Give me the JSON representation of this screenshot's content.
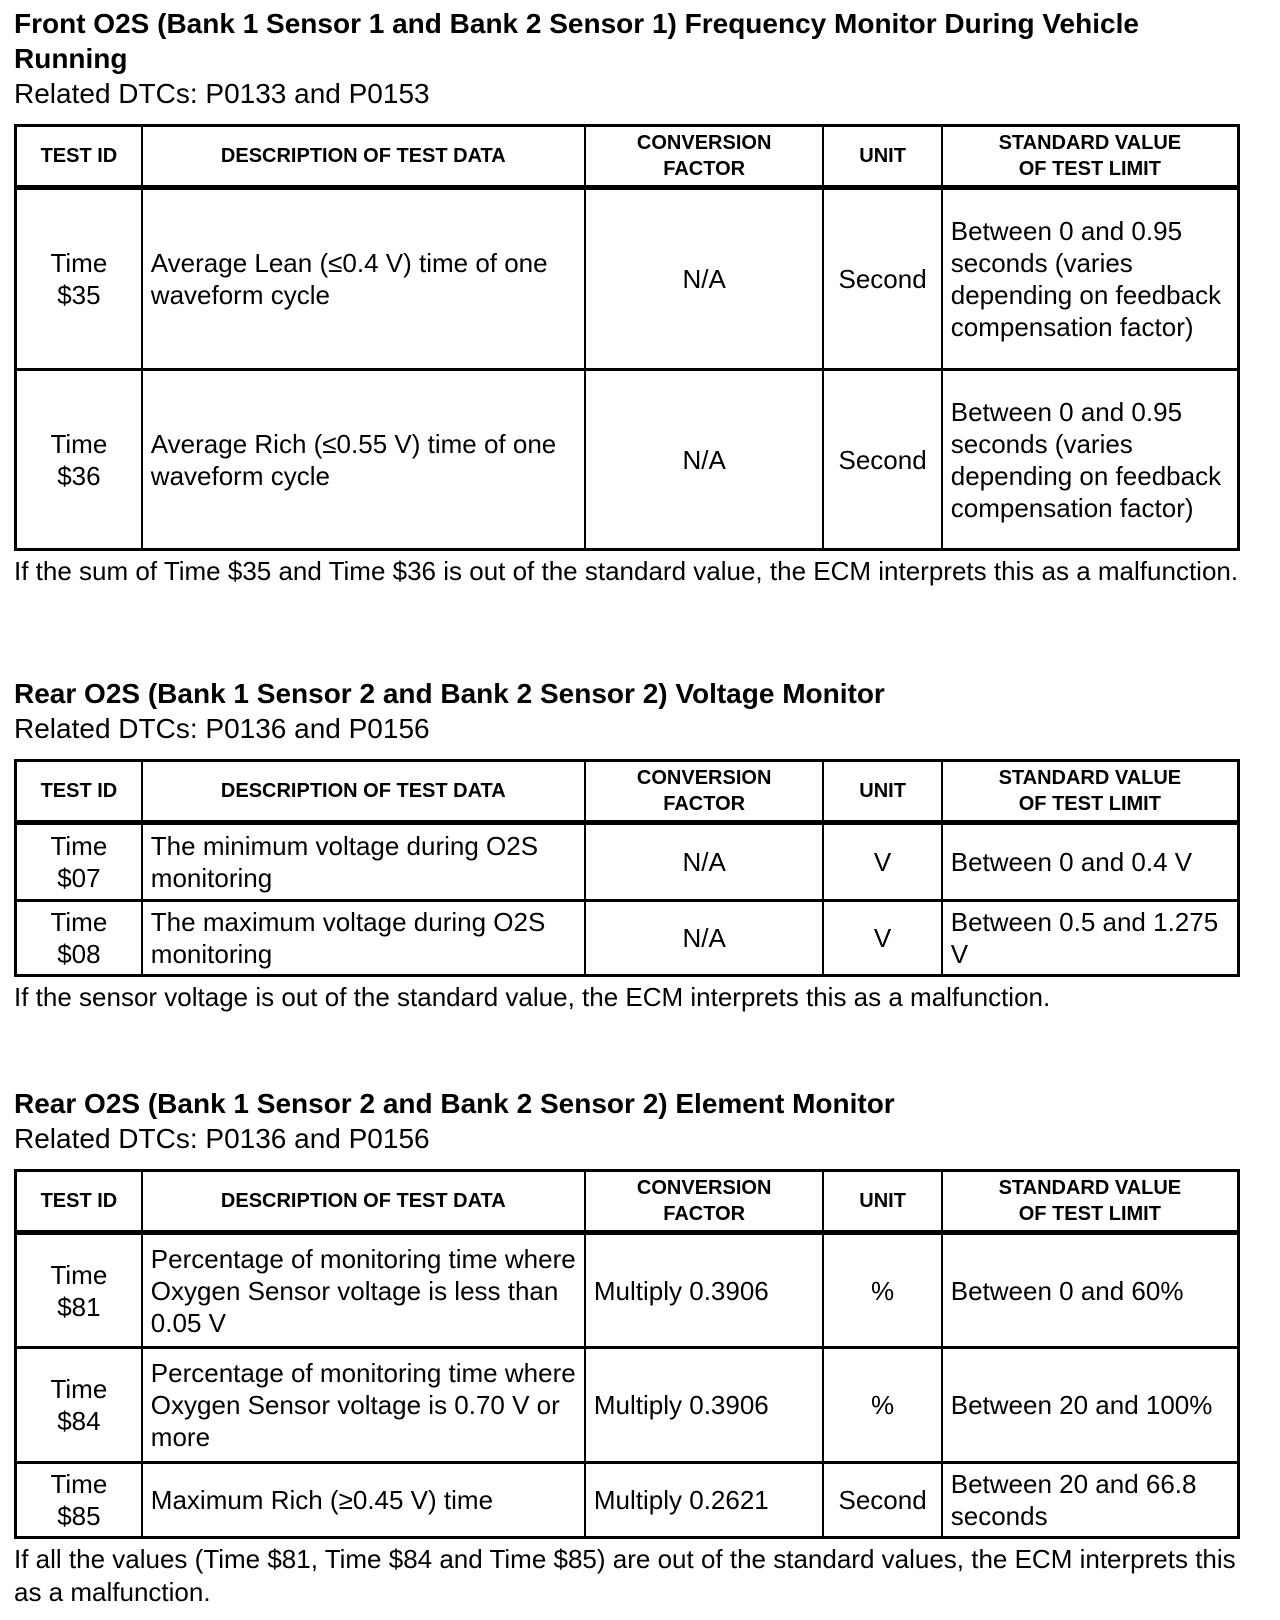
{
  "headers": [
    "TEST ID",
    "DESCRIPTION OF TEST DATA",
    "CONVERSION FACTOR",
    "UNIT",
    "STANDARD VALUE OF TEST LIMIT"
  ],
  "sections": [
    {
      "title": "Front O2S (Bank 1 Sensor 1 and Bank 2 Sensor 1) Frequency Monitor During Vehicle Running",
      "dtcs": "Related DTCs: P0133 and P0153",
      "rows": [
        {
          "id": "Time $35",
          "desc": "Average Lean (≤0.4 V) time of one waveform cycle",
          "factor": "N/A",
          "unit": "Second",
          "limit": "Between 0 and 0.95 seconds (varies depending on feedback compensation factor)"
        },
        {
          "id": "Time $36",
          "desc": "Average Rich (≤0.55 V) time of one waveform cycle",
          "factor": "N/A",
          "unit": "Second",
          "limit": "Between 0 and 0.95 seconds (varies depending on feedback compensation factor)"
        }
      ],
      "note": "If the sum of Time $35 and Time $36 is out of the standard value, the ECM interprets this as a malfunction."
    },
    {
      "title": "Rear O2S (Bank 1 Sensor 2 and Bank 2 Sensor 2) Voltage Monitor",
      "dtcs": "Related DTCs: P0136 and P0156",
      "rows": [
        {
          "id": "Time $07",
          "desc": "The minimum voltage during O2S monitoring",
          "factor": "N/A",
          "unit": "V",
          "limit": "Between 0 and 0.4 V"
        },
        {
          "id": "Time $08",
          "desc": "The maximum voltage during O2S monitoring",
          "factor": "N/A",
          "unit": "V",
          "limit": "Between 0.5 and 1.275 V"
        }
      ],
      "note": "If the sensor voltage is out of the standard value, the ECM interprets this as a malfunction."
    },
    {
      "title": "Rear O2S (Bank 1 Sensor 2 and Bank 2 Sensor 2) Element Monitor",
      "dtcs": "Related DTCs: P0136 and P0156",
      "rows": [
        {
          "id": "Time $81",
          "desc": "Percentage of monitoring time where Oxygen Sensor voltage is less than 0.05 V",
          "factor": "Multiply 0.3906",
          "unit": "%",
          "limit": "Between 0 and 60%"
        },
        {
          "id": "Time $84",
          "desc": "Percentage of monitoring time where Oxygen Sensor voltage is 0.70 V or more",
          "factor": "Multiply 0.3906",
          "unit": "%",
          "limit": "Between 20 and 100%"
        },
        {
          "id": "Time $85",
          "desc": "Maximum Rich (≥0.45 V) time",
          "factor": "Multiply 0.2621",
          "unit": "Second",
          "limit": "Between 20 and 66.8 seconds"
        }
      ],
      "note": "If all the values (Time $81, Time $84 and Time $85) are out of the standard values, the ECM interprets this as a malfunction."
    }
  ]
}
